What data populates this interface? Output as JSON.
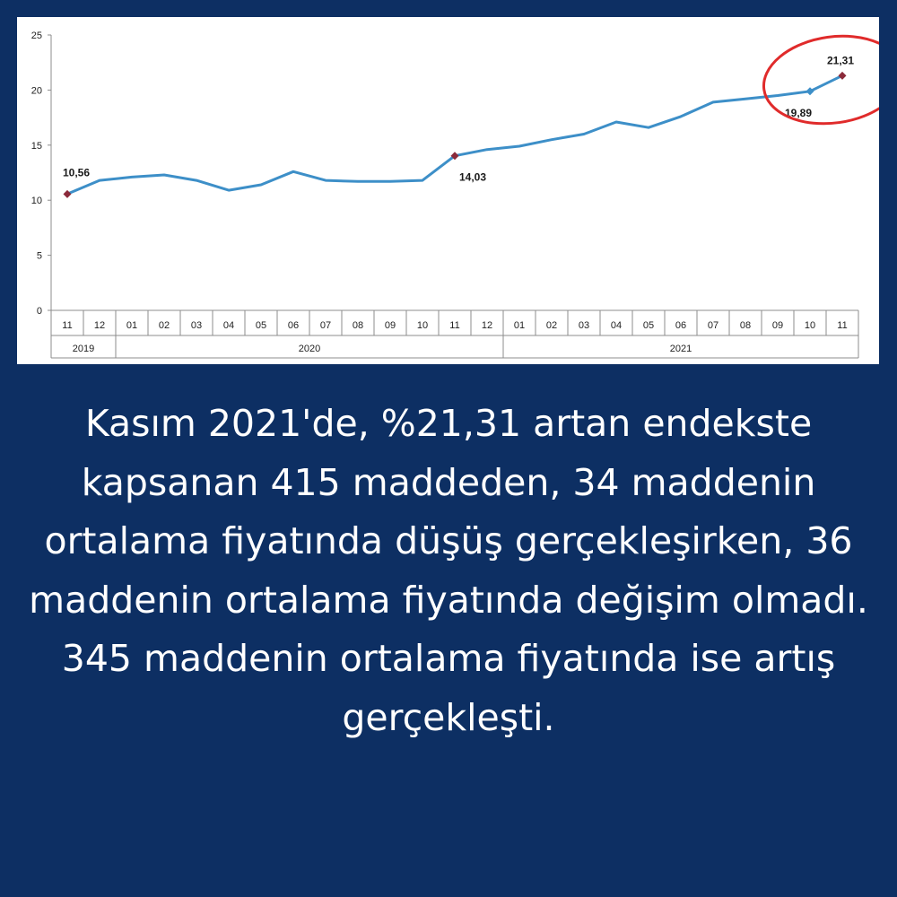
{
  "chart_data": {
    "type": "line",
    "y_ticks": [
      "0",
      "5",
      "10",
      "15",
      "20",
      "25"
    ],
    "ylim": [
      0,
      25
    ],
    "grid": false,
    "categories": [
      "11",
      "12",
      "01",
      "02",
      "03",
      "04",
      "05",
      "06",
      "07",
      "08",
      "09",
      "10",
      "11",
      "12",
      "01",
      "02",
      "03",
      "04",
      "05",
      "06",
      "07",
      "08",
      "09",
      "10",
      "11"
    ],
    "year_groups": [
      {
        "label": "2019",
        "start": 0,
        "end": 1
      },
      {
        "label": "2020",
        "start": 2,
        "end": 13
      },
      {
        "label": "2021",
        "start": 14,
        "end": 24
      }
    ],
    "series": [
      {
        "color": "#3d8fc8",
        "values": [
          10.56,
          11.8,
          12.1,
          12.3,
          11.8,
          10.9,
          11.4,
          12.6,
          11.8,
          11.7,
          11.7,
          11.8,
          14.03,
          14.6,
          14.9,
          15.5,
          16.0,
          17.1,
          16.6,
          17.6,
          18.9,
          19.2,
          19.5,
          19.89,
          21.31
        ]
      }
    ],
    "annotations": [
      {
        "index": 0,
        "label": "10,56",
        "marker_color": "#8b2a3a"
      },
      {
        "index": 12,
        "label": "14,03",
        "marker_color": "#8b2a3a"
      },
      {
        "index": 23,
        "label": "19,89",
        "marker_color": "#3d8fc8"
      },
      {
        "index": 24,
        "label": "21,31",
        "marker_color": "#8b2a3a"
      }
    ],
    "highlight_color": "#e02b2b"
  },
  "caption": "Kasım 2021'de, %21,31 artan endekste kapsanan 415 maddeden, 34 maddenin ortalama fiyatında düşüş gerçekleşirken, 36 maddenin ortalama fiyatında değişim olmadı. 345 maddenin ortalama fiyatında ise artış gerçekleşti."
}
